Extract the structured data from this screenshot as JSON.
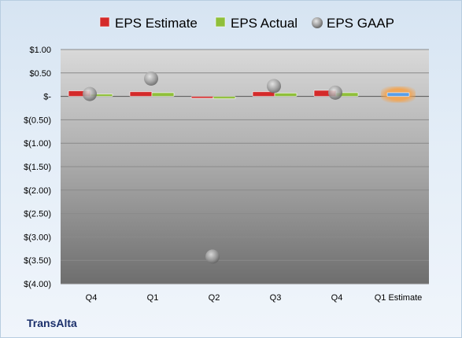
{
  "company": "TransAlta",
  "chart_data": {
    "type": "bar",
    "title": "",
    "xlabel": "",
    "ylabel": "",
    "ylim": [
      -4.0,
      1.0
    ],
    "yticks": [
      1.0,
      0.5,
      0.0,
      -0.5,
      -1.0,
      -1.5,
      -2.0,
      -2.5,
      -3.0,
      -3.5,
      -4.0
    ],
    "ytick_labels": [
      "$1.00",
      "$0.50",
      "$-",
      "$(0.50)",
      "$(1.00)",
      "$(1.50)",
      "$(2.00)",
      "$(2.50)",
      "$(3.00)",
      "$(3.50)",
      "$(4.00)"
    ],
    "categories": [
      "Q4",
      "Q1",
      "Q2",
      "Q3",
      "Q4",
      "Q1 Estimate"
    ],
    "legend_position": "top",
    "series": [
      {
        "name": "EPS Estimate",
        "kind": "bar",
        "color": "#d42a2a",
        "values": [
          0.12,
          0.1,
          -0.04,
          0.1,
          0.13,
          null
        ]
      },
      {
        "name": "EPS Actual",
        "kind": "bar",
        "color": "#8fbf3a",
        "values": [
          0.05,
          0.08,
          -0.05,
          0.07,
          0.08,
          null
        ]
      },
      {
        "name": "EPS GAAP",
        "kind": "marker",
        "color": "#a8a8a8",
        "values": [
          0.05,
          0.38,
          -3.42,
          0.22,
          0.08,
          null
        ]
      }
    ],
    "projection": {
      "category": "Q1 Estimate",
      "value": 0.08,
      "color": "#5a9ee6",
      "glow": "#f5a24a"
    }
  }
}
